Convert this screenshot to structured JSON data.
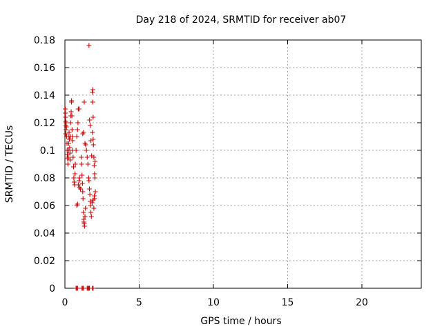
{
  "chart_data": {
    "type": "scatter",
    "title": "Day 218 of 2024, SRMTID for receiver ab07",
    "xlabel": "GPS time / hours",
    "ylabel": "SRMTID / TECUs",
    "xlim": [
      0,
      24
    ],
    "ylim": [
      0,
      0.18
    ],
    "xticks": [
      0,
      5,
      10,
      15,
      20
    ],
    "xtick_labels": [
      "0",
      "5",
      "10",
      "15",
      "20"
    ],
    "yticks": [
      0,
      0.02,
      0.04,
      0.06,
      0.08,
      0.1,
      0.12,
      0.14,
      0.16,
      0.18
    ],
    "ytick_labels": [
      "0",
      "0.02",
      "0.04",
      "0.06",
      "0.08",
      "0.1",
      "0.12",
      "0.14",
      "0.16",
      "0.18"
    ],
    "grid": true,
    "marker": "+",
    "color": "#cc0000",
    "series": [
      {
        "name": "",
        "points": [
          [
            0.02,
            0.13
          ],
          [
            0.03,
            0.127
          ],
          [
            0.04,
            0.124
          ],
          [
            0.05,
            0.121
          ],
          [
            0.06,
            0.118
          ],
          [
            0.07,
            0.115
          ],
          [
            0.05,
            0.112
          ],
          [
            0.08,
            0.12
          ],
          [
            0.1,
            0.117
          ],
          [
            0.12,
            0.11
          ],
          [
            0.14,
            0.105
          ],
          [
            0.15,
            0.1
          ],
          [
            0.16,
            0.097
          ],
          [
            0.18,
            0.094
          ],
          [
            0.2,
            0.09
          ],
          [
            0.22,
            0.095
          ],
          [
            0.24,
            0.1
          ],
          [
            0.25,
            0.105
          ],
          [
            0.27,
            0.11
          ],
          [
            0.28,
            0.113
          ],
          [
            0.3,
            0.108
          ],
          [
            0.32,
            0.102
          ],
          [
            0.34,
            0.098
          ],
          [
            0.35,
            0.093
          ],
          [
            0.37,
            0.11
          ],
          [
            0.38,
            0.12
          ],
          [
            0.4,
            0.125
          ],
          [
            0.42,
            0.128
          ],
          [
            0.44,
            0.135
          ],
          [
            0.45,
            0.136
          ],
          [
            0.47,
            0.125
          ],
          [
            0.48,
            0.115
          ],
          [
            0.5,
            0.11
          ],
          [
            0.52,
            0.107
          ],
          [
            0.53,
            0.1
          ],
          [
            0.55,
            0.095
          ],
          [
            0.58,
            0.088
          ],
          [
            0.6,
            0.08
          ],
          [
            0.62,
            0.077
          ],
          [
            0.65,
            0.075
          ],
          [
            0.68,
            0.083
          ],
          [
            0.7,
            0.09
          ],
          [
            0.75,
            0.1
          ],
          [
            0.8,
            0.11
          ],
          [
            0.85,
            0.115
          ],
          [
            0.88,
            0.12
          ],
          [
            0.9,
            0.13
          ],
          [
            0.95,
            0.13
          ],
          [
            0.8,
            0.06
          ],
          [
            0.85,
            0.061
          ],
          [
            0.9,
            0.075
          ],
          [
            0.95,
            0.078
          ],
          [
            1.0,
            0.073
          ],
          [
            1.05,
            0.072
          ],
          [
            0.98,
            0.08
          ],
          [
            1.1,
            0.095
          ],
          [
            1.12,
            0.09
          ],
          [
            1.15,
            0.082
          ],
          [
            1.18,
            0.076
          ],
          [
            1.2,
            0.07
          ],
          [
            1.22,
            0.065
          ],
          [
            1.25,
            0.055
          ],
          [
            1.27,
            0.05
          ],
          [
            1.3,
            0.047
          ],
          [
            1.32,
            0.045
          ],
          [
            1.28,
            0.048
          ],
          [
            1.35,
            0.052
          ],
          [
            1.38,
            0.058
          ],
          [
            1.2,
            0.112
          ],
          [
            1.25,
            0.113
          ],
          [
            1.3,
            0.135
          ],
          [
            1.4,
            0.104
          ],
          [
            1.35,
            0.105
          ],
          [
            1.45,
            0.1
          ],
          [
            1.5,
            0.095
          ],
          [
            1.55,
            0.09
          ],
          [
            1.6,
            0.08
          ],
          [
            1.62,
            0.078
          ],
          [
            1.65,
            0.072
          ],
          [
            1.68,
            0.068
          ],
          [
            1.7,
            0.063
          ],
          [
            1.72,
            0.06
          ],
          [
            1.75,
            0.055
          ],
          [
            1.78,
            0.052
          ],
          [
            1.66,
            0.122
          ],
          [
            1.7,
            0.118
          ],
          [
            1.75,
            0.107
          ],
          [
            1.8,
            0.096
          ],
          [
            1.62,
            0.176
          ],
          [
            1.85,
            0.142
          ],
          [
            1.88,
            0.144
          ],
          [
            1.87,
            0.135
          ],
          [
            1.9,
            0.124
          ],
          [
            1.85,
            0.113
          ],
          [
            1.9,
            0.108
          ],
          [
            1.92,
            0.104
          ],
          [
            1.95,
            0.095
          ],
          [
            1.97,
            0.089
          ],
          [
            2.0,
            0.083
          ],
          [
            2.02,
            0.08
          ],
          [
            2.05,
            0.07
          ],
          [
            1.98,
            0.067
          ],
          [
            2.0,
            0.065
          ],
          [
            1.9,
            0.064
          ],
          [
            1.83,
            0.062
          ],
          [
            1.95,
            0.058
          ],
          [
            2.03,
            0.092
          ],
          [
            0.75,
            0.0
          ],
          [
            0.8,
            0.0
          ],
          [
            0.85,
            0.0
          ],
          [
            1.15,
            0.0
          ],
          [
            1.2,
            0.0
          ],
          [
            1.25,
            0.0
          ],
          [
            1.5,
            0.0
          ],
          [
            1.55,
            0.0
          ],
          [
            1.6,
            0.0
          ],
          [
            1.65,
            0.0
          ],
          [
            1.85,
            0.0
          ],
          [
            1.9,
            0.0
          ]
        ]
      }
    ]
  }
}
